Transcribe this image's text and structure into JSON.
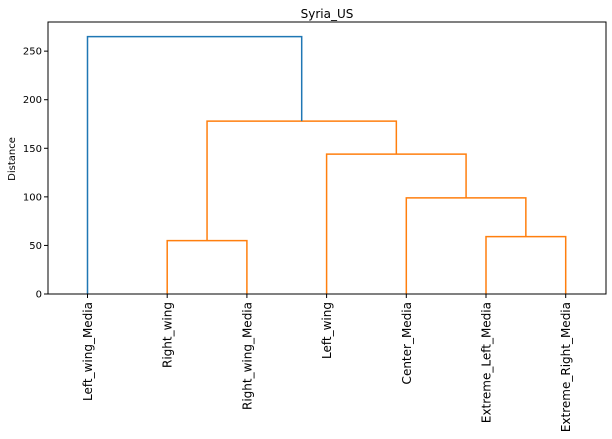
{
  "chart_data": {
    "type": "dendrogram",
    "title": "Syria_US",
    "xlabel": "",
    "ylabel": "Distance",
    "ylim": [
      0,
      280
    ],
    "yticks": [
      0,
      50,
      100,
      150,
      200,
      250
    ],
    "grid": false,
    "legend": "none",
    "leaves": [
      "Left_wing_Media",
      "Right_wing",
      "Right_wing_Media",
      "Left_wing",
      "Center_Media",
      "Extreme_Left_Media",
      "Extreme_Right_Media"
    ],
    "merges": [
      {
        "left": "Right_wing",
        "right": "Right_wing_Media",
        "distance": 55
      },
      {
        "left": "Extreme_Left_Media",
        "right": "Extreme_Right_Media",
        "distance": 59
      },
      {
        "left": "Center_Media",
        "right": "{Extreme_Left_Media, Extreme_Right_Media}",
        "distance": 99
      },
      {
        "left": "Left_wing",
        "right": "{Center_Media, Extreme_Left_Media, Extreme_Right_Media}",
        "distance": 144
      },
      {
        "left": "{Right_wing, Right_wing_Media}",
        "right": "{Left_wing, Center_Media, Extreme_Left_Media, Extreme_Right_Media}",
        "distance": 178
      },
      {
        "left": "Left_wing_Media",
        "right": "all other leaves",
        "distance": 265
      }
    ],
    "colors": {
      "above_threshold": "#1f77b4",
      "cluster": "#ff7f0e"
    }
  }
}
